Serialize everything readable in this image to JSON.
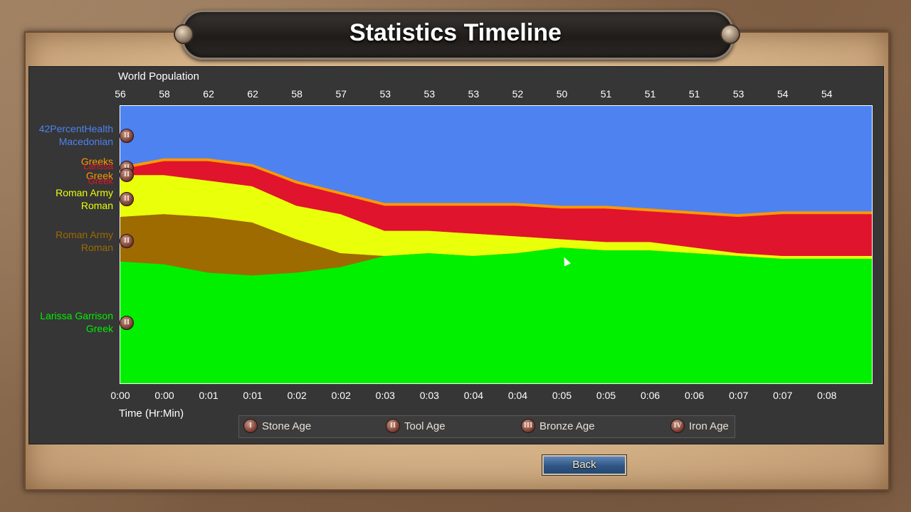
{
  "window": {
    "title": "Statistics Timeline"
  },
  "chart_data": {
    "type": "area",
    "title": "World Population",
    "xlabel": "Time (Hr:Min)",
    "ylabel": "",
    "top_ticks": [
      "56",
      "58",
      "62",
      "62",
      "58",
      "57",
      "53",
      "53",
      "53",
      "52",
      "50",
      "51",
      "51",
      "51",
      "53",
      "54",
      "54"
    ],
    "x": [
      "0:00",
      "0:00",
      "0:01",
      "0:01",
      "0:02",
      "0:02",
      "0:03",
      "0:03",
      "0:04",
      "0:04",
      "0:05",
      "0:05",
      "0:06",
      "0:06",
      "0:07",
      "0:07",
      "0:08"
    ],
    "stacking": "percent",
    "series": [
      {
        "name": "Larissa Garrison Greek",
        "color": "#00f000",
        "values": [
          0.44,
          0.43,
          0.4,
          0.39,
          0.4,
          0.42,
          0.46,
          0.47,
          0.46,
          0.47,
          0.49,
          0.48,
          0.48,
          0.47,
          0.46,
          0.45,
          0.45
        ]
      },
      {
        "name": "Roman Army Roman",
        "color": "#9d6b00",
        "values": [
          0.16,
          0.18,
          0.2,
          0.19,
          0.12,
          0.05,
          0.0,
          0.0,
          0.0,
          0.0,
          0.0,
          0.0,
          0.0,
          0.0,
          0.0,
          0.0,
          0.0
        ]
      },
      {
        "name": "Roman Army Roman",
        "color": "#eaff0a",
        "values": [
          0.15,
          0.14,
          0.13,
          0.13,
          0.12,
          0.14,
          0.09,
          0.08,
          0.08,
          0.06,
          0.03,
          0.03,
          0.03,
          0.02,
          0.01,
          0.01,
          0.01
        ]
      },
      {
        "name": "Larissa Greek",
        "color": "#e0142c",
        "values": [
          0.02,
          0.05,
          0.07,
          0.07,
          0.08,
          0.07,
          0.09,
          0.09,
          0.1,
          0.11,
          0.11,
          0.12,
          0.11,
          0.12,
          0.13,
          0.15,
          0.15
        ]
      },
      {
        "name": "Greeks Greek",
        "color": "#ff9800",
        "values": [
          0.01,
          0.01,
          0.01,
          0.01,
          0.01,
          0.01,
          0.01,
          0.01,
          0.01,
          0.01,
          0.01,
          0.01,
          0.01,
          0.01,
          0.01,
          0.01,
          0.01
        ]
      },
      {
        "name": "42PercentHealth Macedonian",
        "color": "#4e82f0",
        "values": [
          0.22,
          0.19,
          0.19,
          0.21,
          0.27,
          0.31,
          0.35,
          0.35,
          0.35,
          0.35,
          0.36,
          0.36,
          0.37,
          0.38,
          0.39,
          0.38,
          0.38
        ]
      }
    ]
  },
  "players": [
    {
      "name": "42PercentHealth",
      "civ": "Macedonian",
      "color": "#4e82f0",
      "age_numeral": "II"
    },
    {
      "name": "Greeks",
      "civ": "Greek",
      "color": "#ff9800",
      "age_numeral": "II"
    },
    {
      "name": "Larissa",
      "civ": "Greek",
      "color": "#e0142c",
      "age_numeral": "II"
    },
    {
      "name": "Roman Army",
      "civ": "Roman",
      "color": "#eaff0a",
      "age_numeral": "II"
    },
    {
      "name": "Roman Army",
      "civ": "Roman",
      "color": "#9d6b00",
      "age_numeral": "II"
    },
    {
      "name": "Larissa Garrison",
      "civ": "Greek",
      "color": "#00f000",
      "age_numeral": "II"
    }
  ],
  "legend": [
    {
      "numeral": "I",
      "label": "Stone Age"
    },
    {
      "numeral": "II",
      "label": "Tool Age"
    },
    {
      "numeral": "III",
      "label": "Bronze Age"
    },
    {
      "numeral": "IV",
      "label": "Iron Age"
    }
  ],
  "buttons": {
    "back": "Back"
  }
}
